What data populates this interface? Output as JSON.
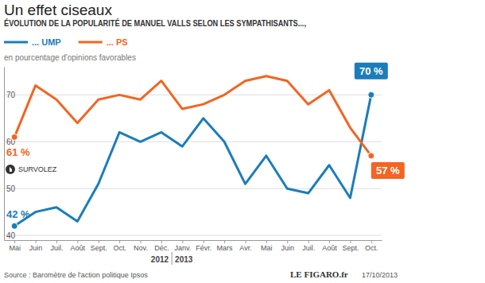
{
  "chart_data": {
    "type": "line",
    "title": "Un effet ciseaux",
    "subtitle": "ÉVOLUTION DE LA POPULARITÉ DE MANUEL VALLS SELON LES SYMPATHISANTS...,",
    "y_label": "en pourcentage d'opinions favorables",
    "categories": [
      "Mai",
      "Juin",
      "Juil.",
      "Août",
      "Sept.",
      "Oct.",
      "Nov.",
      "Déc.",
      "Janv.",
      "Févr.",
      "Mars",
      "Avr.",
      "Mai",
      "Juin",
      "Juil.",
      "Août",
      "Sept.",
      "Oct."
    ],
    "year_groups": [
      {
        "label": "2012",
        "first": 0,
        "last": 7
      },
      {
        "label": "2013",
        "first": 8,
        "last": 17
      }
    ],
    "series": [
      {
        "name": "... UMP",
        "color": "#1b7dba",
        "values": [
          42,
          45,
          46,
          43,
          51,
          62,
          60,
          62,
          59,
          65,
          60,
          51,
          57,
          50,
          49,
          55,
          48,
          70
        ],
        "value_labels": [
          "42 %",
          null,
          null,
          null,
          null,
          null,
          null,
          null,
          null,
          null,
          null,
          null,
          null,
          null,
          null,
          null,
          null,
          "70 %"
        ]
      },
      {
        "name": "... PS",
        "color": "#f26522",
        "values": [
          61,
          72,
          69,
          64,
          69,
          70,
          69,
          73,
          67,
          68,
          70,
          73,
          74,
          73,
          68,
          71,
          63,
          57
        ],
        "value_labels": [
          "61 %",
          null,
          null,
          null,
          null,
          null,
          null,
          null,
          null,
          null,
          null,
          null,
          null,
          null,
          null,
          null,
          null,
          "57 %"
        ]
      }
    ],
    "ylim": [
      39,
      76
    ],
    "yticks": [
      40,
      50,
      60,
      70
    ],
    "grid": true,
    "legend": "top-left",
    "data_labels": true,
    "marker": "endpoints",
    "annotations": [
      "SURVOLEZ"
    ],
    "source": "Source : Baromètre de l'action politique Ipsos",
    "credit": "LE FIGARO.fr",
    "date": "17/10/2013"
  }
}
